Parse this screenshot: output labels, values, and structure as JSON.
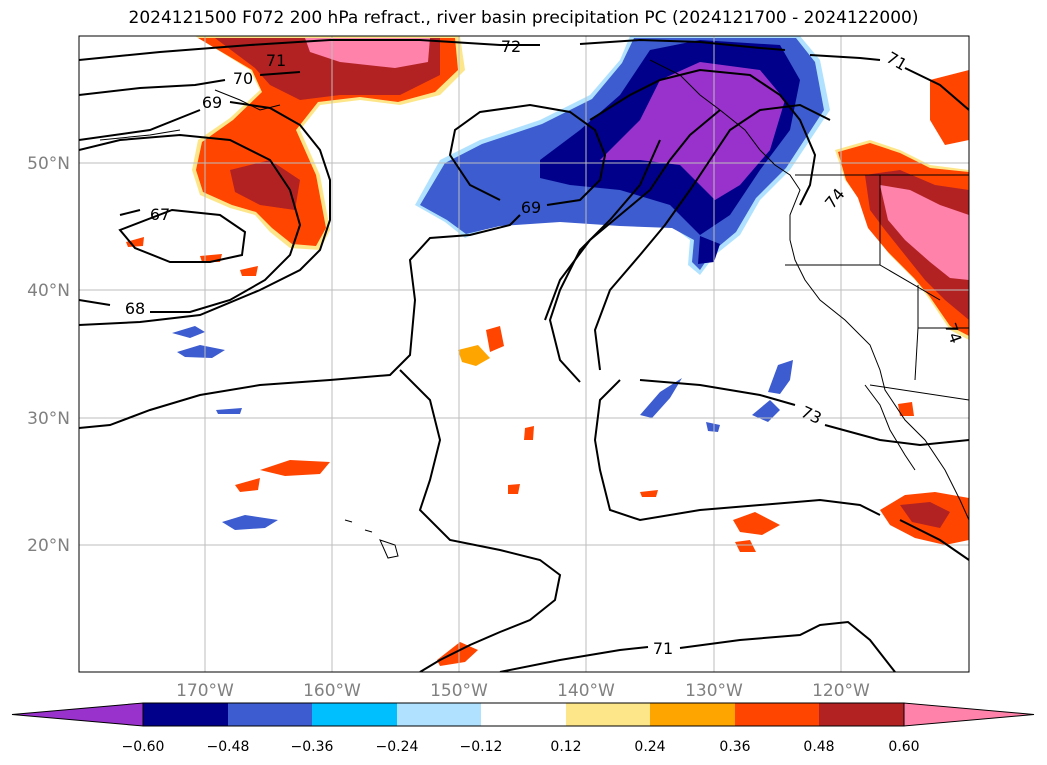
{
  "title": "2024121500 F072 200 hPa refract., river basin precipitation PC (2024121700 - 2024122000)",
  "axes": {
    "lon_labels": [
      "170°W",
      "160°W",
      "150°W",
      "140°W",
      "130°W",
      "120°W"
    ],
    "lat_labels": [
      "50°N",
      "40°N",
      "30°N",
      "20°N"
    ]
  },
  "contour_labels": [
    "72",
    "71",
    "70",
    "69",
    "67",
    "68",
    "69",
    "71",
    "73",
    "74",
    "74",
    "71"
  ],
  "colorbar": {
    "ticks": [
      "−0.60",
      "−0.48",
      "−0.36",
      "−0.24",
      "−0.12",
      "0.12",
      "0.24",
      "0.36",
      "0.48",
      "0.60"
    ],
    "colors": [
      "#9932cc",
      "#00008b",
      "#3c5ccf",
      "#00bfff",
      "#b0e2ff",
      "#ffffff",
      "#fde68a",
      "#ffa500",
      "#ff4500",
      "#b22222",
      "#ff82ab"
    ]
  }
}
